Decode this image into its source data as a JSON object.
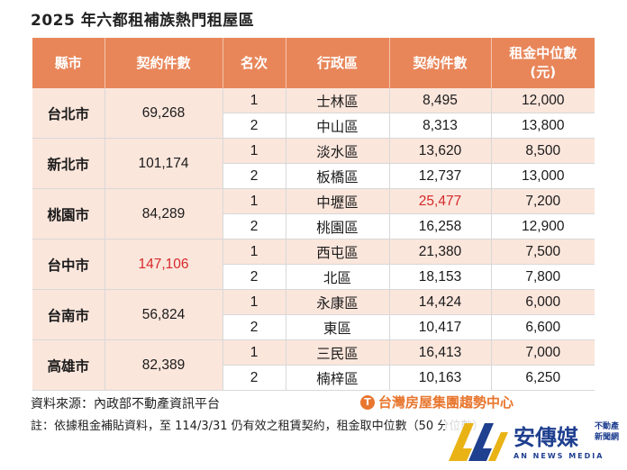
{
  "title": "2025 年六都租補族熱門租屋區",
  "headers": [
    "縣市",
    "契約件數",
    "名次",
    "行政區",
    "契約件數",
    "租金中位數\n(元)"
  ],
  "groups": [
    {
      "county": "台北市",
      "total": "69,268",
      "total_red": false,
      "rows": [
        {
          "rank": "1",
          "district": "士林區",
          "count": "8,495",
          "rent": "12,000",
          "count_red": false
        },
        {
          "rank": "2",
          "district": "中山區",
          "count": "8,313",
          "rent": "13,800",
          "count_red": false
        }
      ]
    },
    {
      "county": "新北市",
      "total": "101,174",
      "total_red": false,
      "rows": [
        {
          "rank": "1",
          "district": "淡水區",
          "count": "13,620",
          "rent": "8,500",
          "count_red": false
        },
        {
          "rank": "2",
          "district": "板橋區",
          "count": "12,737",
          "rent": "13,000",
          "count_red": false
        }
      ]
    },
    {
      "county": "桃園市",
      "total": "84,289",
      "total_red": false,
      "rows": [
        {
          "rank": "1",
          "district": "中壢區",
          "count": "25,477",
          "rent": "7,200",
          "count_red": true
        },
        {
          "rank": "2",
          "district": "桃園區",
          "count": "16,258",
          "rent": "12,900",
          "count_red": false
        }
      ]
    },
    {
      "county": "台中市",
      "total": "147,106",
      "total_red": true,
      "rows": [
        {
          "rank": "1",
          "district": "西屯區",
          "count": "21,380",
          "rent": "7,500",
          "count_red": false
        },
        {
          "rank": "2",
          "district": "北區",
          "count": "18,153",
          "rent": "7,800",
          "count_red": false
        }
      ]
    },
    {
      "county": "台南市",
      "total": "56,824",
      "total_red": false,
      "rows": [
        {
          "rank": "1",
          "district": "永康區",
          "count": "14,424",
          "rent": "6,000",
          "count_red": false
        },
        {
          "rank": "2",
          "district": "東區",
          "count": "10,417",
          "rent": "6,600",
          "count_red": false
        }
      ]
    },
    {
      "county": "高雄市",
      "total": "82,389",
      "total_red": false,
      "rows": [
        {
          "rank": "1",
          "district": "三民區",
          "count": "16,413",
          "rent": "7,000",
          "count_red": false
        },
        {
          "rank": "2",
          "district": "楠梓區",
          "count": "10,163",
          "rent": "6,250",
          "count_red": false
        }
      ]
    }
  ],
  "source": "資料來源：內政部不動產資訊平台",
  "brand": "台灣房屋集團趨勢中心",
  "note": "註：依據租金補貼資料，至 114/3/31 仍有效之租賃契約，租金取中位數（50 分位數）",
  "logo": {
    "name": "安傳媒",
    "side": "不動產 新聞網",
    "sub": "AN NEWS MEDIA"
  },
  "colors": {
    "header": "#e8865a",
    "shade": "#fbe6dc",
    "highlight": "#d42a2a",
    "logo": "#1f3f8f"
  }
}
